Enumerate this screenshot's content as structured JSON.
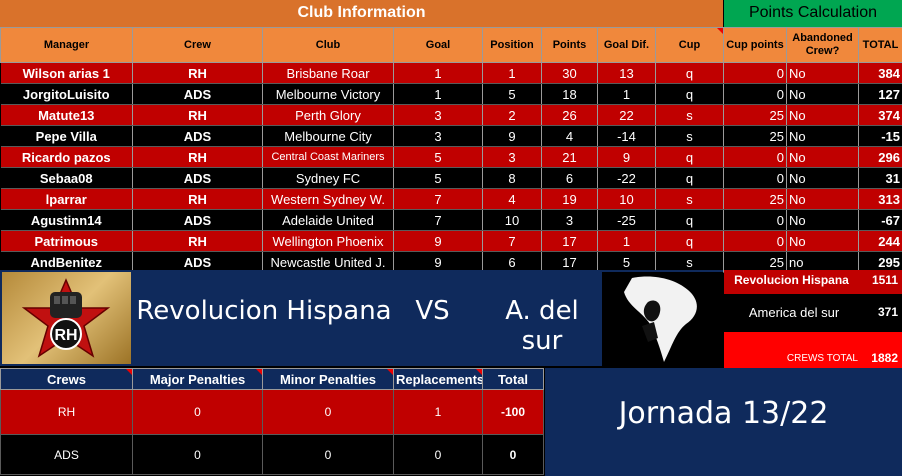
{
  "headers": {
    "club_info": "Club Information",
    "points_calc": "Points Calculation"
  },
  "columns": [
    "Manager",
    "Crew",
    "Club",
    "Goal",
    "Position",
    "Points",
    "Goal Dif.",
    "Cup",
    "Cup points",
    "Abandoned Crew?",
    "TOTAL"
  ],
  "rows": [
    {
      "manager": "Wilson arias 1",
      "crew": "RH",
      "club": "Brisbane Roar",
      "goal": "1",
      "position": "1",
      "points": "30",
      "goal_dif": "13",
      "cup": "q",
      "cup_points": "0",
      "abandoned": "No",
      "total": "384"
    },
    {
      "manager": "JorgitoLuisito",
      "crew": "ADS",
      "club": "Melbourne Victory",
      "goal": "1",
      "position": "5",
      "points": "18",
      "goal_dif": "1",
      "cup": "q",
      "cup_points": "0",
      "abandoned": "No",
      "total": "127"
    },
    {
      "manager": "Matute13",
      "crew": "RH",
      "club": "Perth Glory",
      "goal": "3",
      "position": "2",
      "points": "26",
      "goal_dif": "22",
      "cup": "s",
      "cup_points": "25",
      "abandoned": "No",
      "total": "374"
    },
    {
      "manager": "Pepe Villa",
      "crew": "ADS",
      "club": "Melbourne City",
      "goal": "3",
      "position": "9",
      "points": "4",
      "goal_dif": "-14",
      "cup": "s",
      "cup_points": "25",
      "abandoned": "No",
      "total": "-15"
    },
    {
      "manager": "Ricardo pazos",
      "crew": "RH",
      "club": "Central Coast Mariners",
      "goal": "5",
      "position": "3",
      "points": "21",
      "goal_dif": "9",
      "cup": "q",
      "cup_points": "0",
      "abandoned": "No",
      "total": "296"
    },
    {
      "manager": "Sebaa08",
      "crew": "ADS",
      "club": "Sydney FC",
      "goal": "5",
      "position": "8",
      "points": "6",
      "goal_dif": "-22",
      "cup": "q",
      "cup_points": "0",
      "abandoned": "No",
      "total": "31"
    },
    {
      "manager": "lparrar",
      "crew": "RH",
      "club": "Western Sydney W.",
      "goal": "7",
      "position": "4",
      "points": "19",
      "goal_dif": "10",
      "cup": "s",
      "cup_points": "25",
      "abandoned": "No",
      "total": "313"
    },
    {
      "manager": "Agustinn14",
      "crew": "ADS",
      "club": "Adelaide United",
      "goal": "7",
      "position": "10",
      "points": "3",
      "goal_dif": "-25",
      "cup": "q",
      "cup_points": "0",
      "abandoned": "No",
      "total": "-67"
    },
    {
      "manager": "Patrimous",
      "crew": "RH",
      "club": "Wellington Phoenix",
      "goal": "9",
      "position": "7",
      "points": "17",
      "goal_dif": "1",
      "cup": "q",
      "cup_points": "0",
      "abandoned": "No",
      "total": "244"
    },
    {
      "manager": "AndBenitez",
      "crew": "ADS",
      "club": "Newcastle United J.",
      "goal": "9",
      "position": "6",
      "points": "17",
      "goal_dif": "5",
      "cup": "s",
      "cup_points": "25",
      "abandoned": "no",
      "total": "295"
    }
  ],
  "matchup": {
    "team_a": "Revolucion Hispana",
    "vs": "VS",
    "team_b": "A. del sur",
    "logo_a_text": "RH"
  },
  "totals": {
    "team_a_name": "Revolucion Hispana",
    "team_a_total": "1511",
    "team_b_name": "America del sur",
    "team_b_total": "371",
    "crews_total_label": "CREWS TOTAL",
    "crews_total": "1882"
  },
  "crews_table": {
    "columns": [
      "Crews",
      "Major Penalties",
      "Minor Penalties",
      "Replacements",
      "Total"
    ],
    "rows": [
      {
        "crew": "RH",
        "major": "0",
        "minor": "0",
        "replacements": "1",
        "total": "-100"
      },
      {
        "crew": "ADS",
        "major": "0",
        "minor": "0",
        "replacements": "0",
        "total": "0"
      }
    ]
  },
  "jornada": "Jornada 13/22",
  "colors": {
    "red_row": "#c00000",
    "header_orange": "#f0883c",
    "navy": "#0f2a5c",
    "green": "#00a651"
  }
}
